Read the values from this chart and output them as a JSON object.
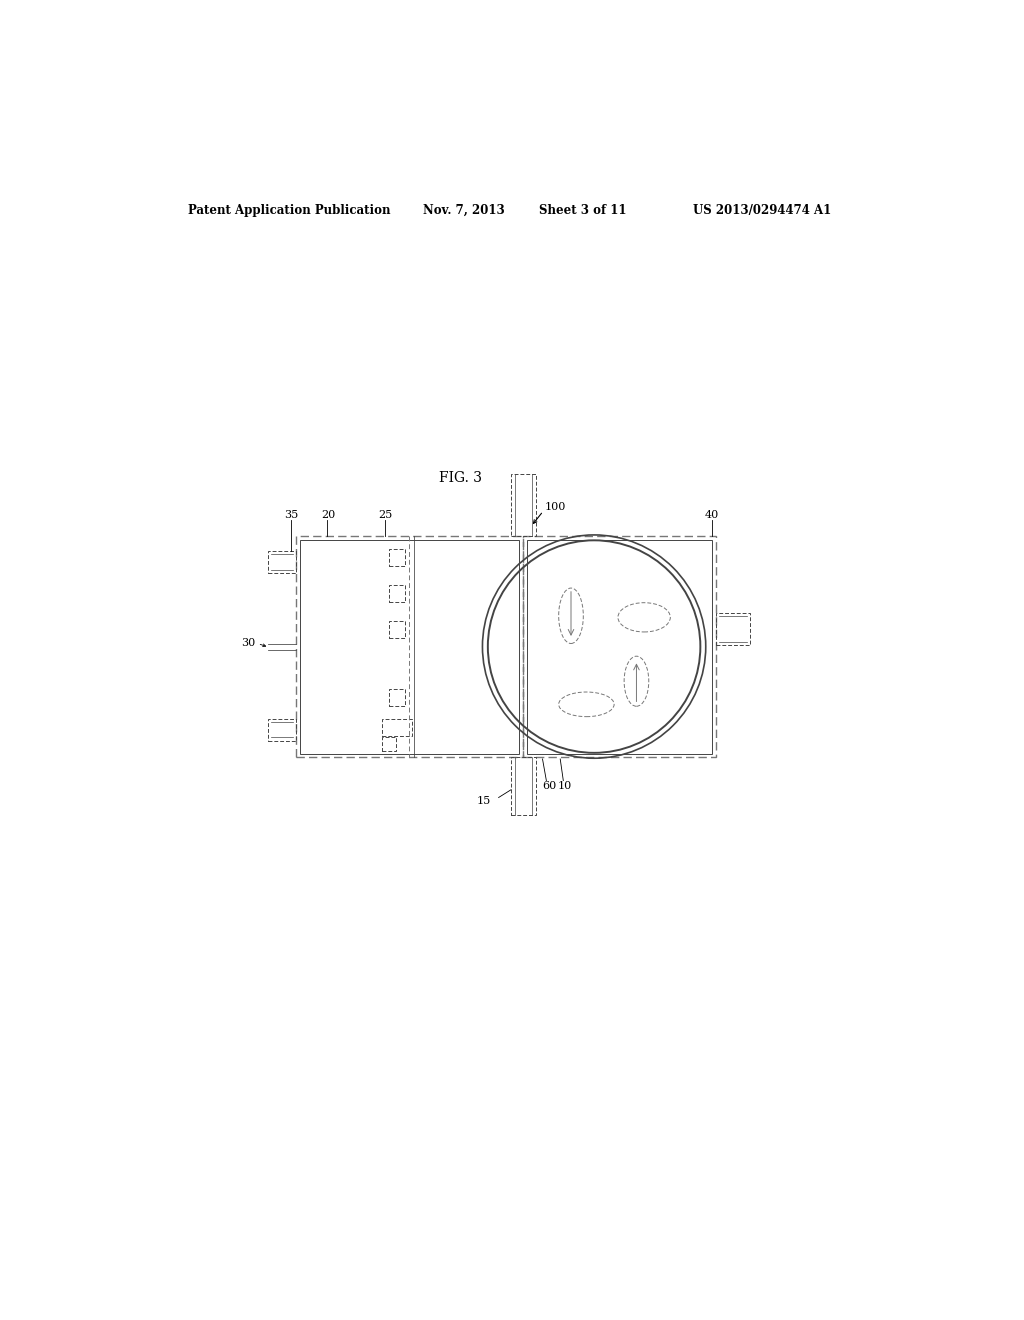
{
  "background_color": "#ffffff",
  "header_text": "Patent Application Publication",
  "header_date": "Nov. 7, 2013",
  "header_sheet": "Sheet 3 of 11",
  "header_patent": "US 2013/0294474 A1",
  "fig_label": "FIG. 3",
  "label_100": "100",
  "label_20": "20",
  "label_25": "25",
  "label_35": "35",
  "label_30": "30",
  "label_40": "40",
  "label_15": "15",
  "label_60": "60",
  "label_10": "10",
  "line_color": "#444444",
  "dashed_color": "#777777",
  "thin_line": 0.7,
  "medium_line": 1.0,
  "thick_line": 1.4
}
